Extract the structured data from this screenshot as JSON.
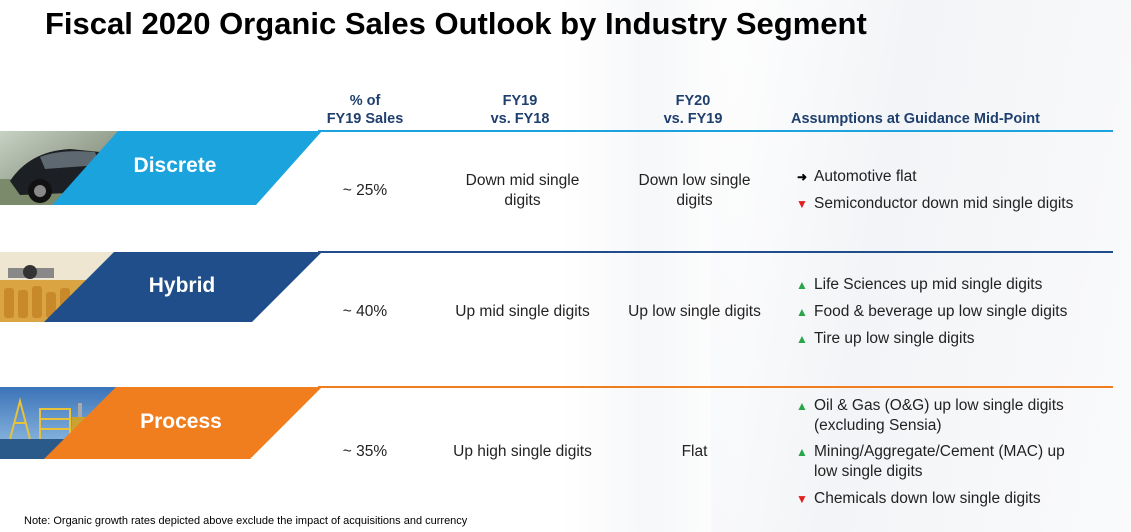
{
  "title": "Fiscal 2020 Organic Sales Outlook by Industry Segment",
  "headers": {
    "pct_line1": "% of",
    "pct_line2": "FY19 Sales",
    "fy19_line1": "FY19",
    "fy19_line2": "vs. FY18",
    "fy20_line1": "FY20",
    "fy20_line2": "vs. FY19",
    "assumptions": "Assumptions at Guidance Mid-Point"
  },
  "colors": {
    "discrete": "#1aa3dc",
    "hybrid": "#1f4e8a",
    "process": "#f07d1e",
    "header_text": "#1f3f6e",
    "up": "#2aa64a",
    "down": "#e0201c"
  },
  "segments": {
    "discrete": {
      "label": "Discrete",
      "pct": "~ 25%",
      "fy19": "Down mid single digits",
      "fy20": "Down low single digits",
      "assumptions": [
        {
          "direction": "flat",
          "icon": "arrow-right-icon",
          "text": "Automotive flat"
        },
        {
          "direction": "down",
          "icon": "arrow-down-icon",
          "text": "Semiconductor down mid single digits"
        }
      ]
    },
    "hybrid": {
      "label": "Hybrid",
      "pct": "~ 40%",
      "fy19": "Up mid single digits",
      "fy20": "Up low single digits",
      "assumptions": [
        {
          "direction": "up",
          "icon": "arrow-up-icon",
          "text": "Life Sciences up mid single digits"
        },
        {
          "direction": "up",
          "icon": "arrow-up-icon",
          "text": "Food & beverage up low single digits"
        },
        {
          "direction": "up",
          "icon": "arrow-up-icon",
          "text": "Tire up low single digits"
        }
      ]
    },
    "process": {
      "label": "Process",
      "pct": "~ 35%",
      "fy19": "Up high single digits",
      "fy20": "Flat",
      "assumptions": [
        {
          "direction": "up",
          "icon": "arrow-up-icon",
          "text_line1": "Oil & Gas (O&G) up low single digits",
          "text_line2": "(excluding Sensia)"
        },
        {
          "direction": "up",
          "icon": "arrow-up-icon",
          "text_line1": "Mining/Aggregate/Cement (MAC) up",
          "text_line2": "low single digits"
        },
        {
          "direction": "down",
          "icon": "arrow-down-icon",
          "text": "Chemicals down low single digits"
        }
      ]
    }
  },
  "note": "Note: Organic growth rates depicted above exclude the impact of acquisitions and currency"
}
